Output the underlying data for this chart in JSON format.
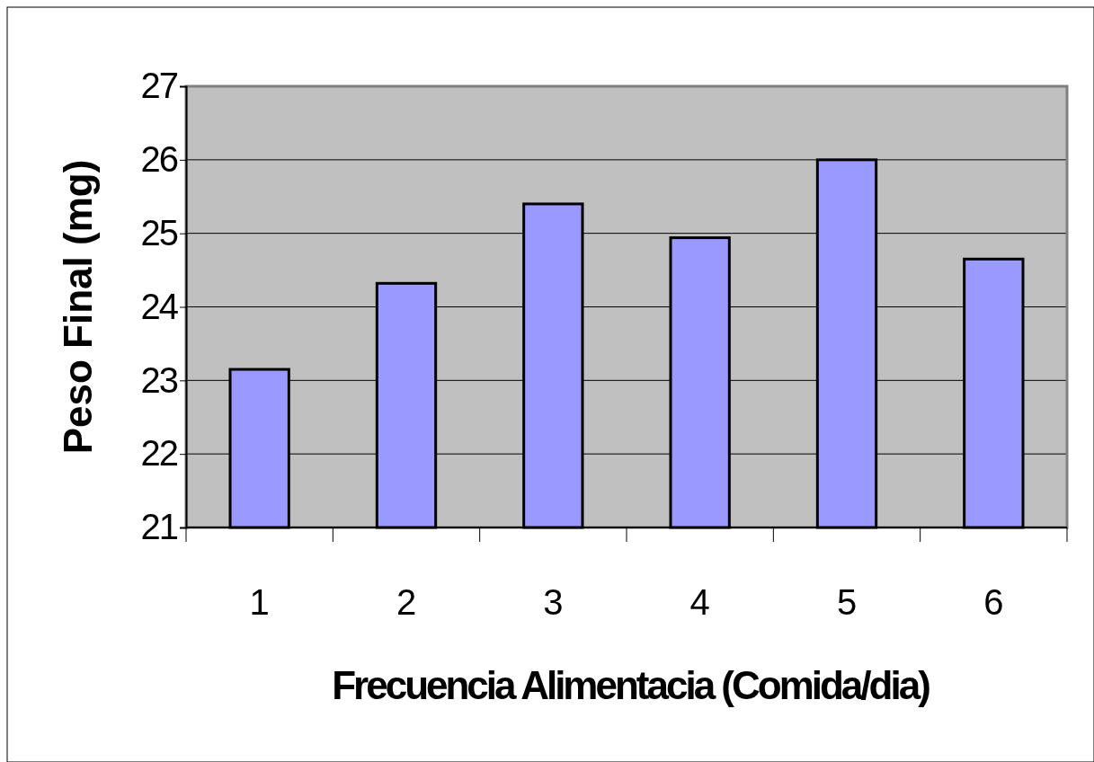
{
  "chart_data": {
    "type": "bar",
    "xlabel": "Frecuencia Alimentacia (Comida/dia)",
    "ylabel": "Peso Final (mg)",
    "categories": [
      "1",
      "2",
      "3",
      "4",
      "5",
      "6"
    ],
    "values": [
      23.15,
      24.32,
      25.4,
      24.94,
      26.0,
      24.65
    ],
    "color": "#9999ff",
    "ylim": [
      21,
      27
    ],
    "yticks": [
      21,
      22,
      23,
      24,
      25,
      26,
      27
    ],
    "grid": "y"
  }
}
